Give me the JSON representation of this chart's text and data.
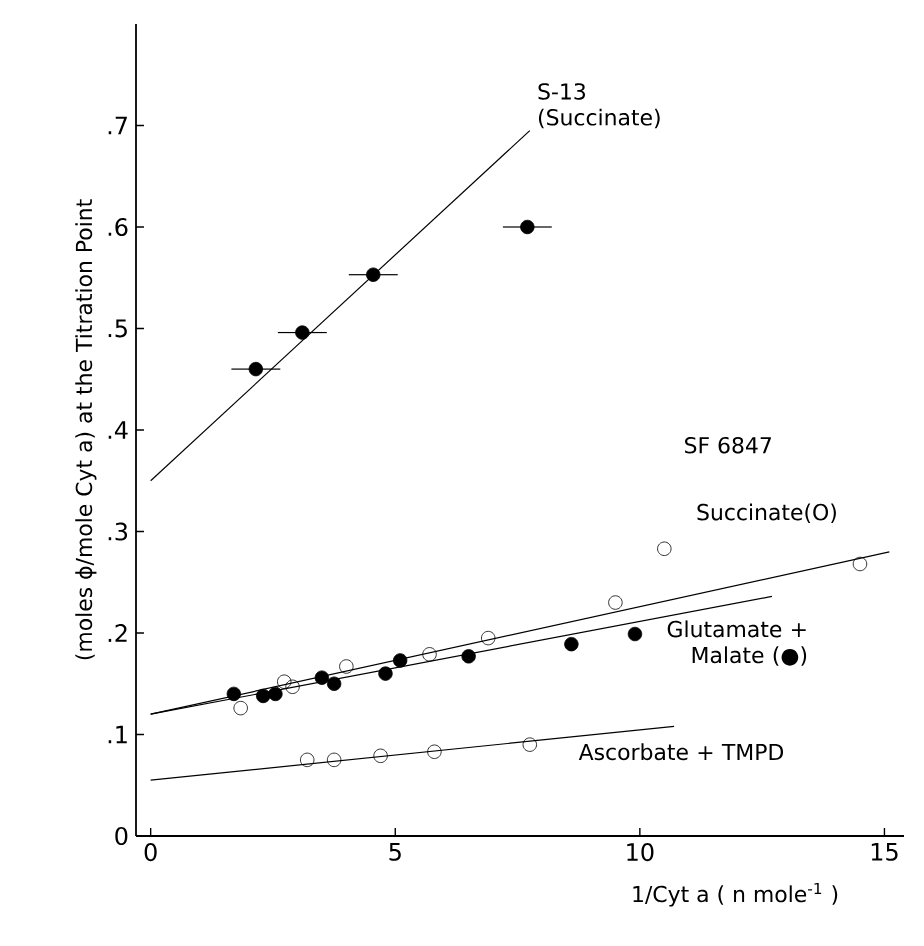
{
  "chart_data": {
    "type": "scatter",
    "ylabel": "(moles ϕ/mole Cyt a) at the Titration Point",
    "xlabel": "1/Cyt a ( n mole$^{-1}$ )",
    "xlim": [
      -0.3,
      15.4
    ],
    "ylim": [
      0,
      0.8
    ],
    "xticks": [
      0,
      5,
      10,
      15
    ],
    "yticks": [
      0,
      {
        "value": 0.1,
        "label": ".1"
      },
      {
        "value": 0.2,
        "label": ".2"
      },
      {
        "value": 0.3,
        "label": ".3"
      },
      {
        "value": 0.4,
        "label": ".4"
      },
      {
        "value": 0.5,
        "label": ".5"
      },
      {
        "value": 0.6,
        "label": ".6"
      },
      {
        "value": 0.7,
        "label": ".7"
      }
    ],
    "grid": false,
    "annotations": [
      "SF 6847"
    ],
    "series": [
      {
        "marker": "circle",
        "color": "#000000",
        "x": [
          2.15,
          3.1,
          4.55,
          7.7
        ],
        "values": [
          0.46,
          0.496,
          0.553,
          0.6
        ],
        "xerrors": [
          0.5,
          0.5,
          0.5,
          0.5
        ]
      },
      {
        "name": "S-13 (Succinate)",
        "type": "line",
        "color": "#000000",
        "line_style": "solid",
        "x": [
          0,
          7.75
        ],
        "values": [
          0.35,
          0.695
        ]
      },
      {
        "name": "Succinate(O)",
        "marker": "circle",
        "x": [
          1.84,
          2.73,
          2.9,
          4.0,
          5.7,
          6.9,
          9.5,
          10.5,
          14.5
        ],
        "values": [
          0.126,
          0.152,
          0.147,
          0.167,
          0.179,
          0.195,
          0.23,
          0.283,
          0.268
        ]
      },
      {
        "type": "line",
        "color": "#000000",
        "line_style": "solid",
        "x": [
          0,
          15.1
        ],
        "values": [
          0.12,
          0.28
        ]
      },
      {
        "name": "Glutamate + Malate (●)",
        "marker": "circle",
        "color": "#000000",
        "x": [
          1.7,
          2.3,
          2.55,
          3.5,
          3.75,
          4.8,
          5.1,
          6.5,
          8.6,
          9.9
        ],
        "values": [
          0.14,
          0.138,
          0.14,
          0.156,
          0.15,
          0.16,
          0.173,
          0.177,
          0.189,
          0.199
        ]
      },
      {
        "type": "line",
        "color": "#000000",
        "line_style": "solid",
        "x": [
          0,
          12.7
        ],
        "values": [
          0.12,
          0.236
        ]
      },
      {
        "name": "Ascorbate + TMPD",
        "marker": "circle",
        "x": [
          3.2,
          3.75,
          4.7,
          5.8,
          7.75
        ],
        "values": [
          0.075,
          0.075,
          0.079,
          0.083,
          0.09
        ]
      },
      {
        "type": "line",
        "color": "#000000",
        "line_style": "solid",
        "x": [
          0,
          10.7
        ],
        "values": [
          0.055,
          0.108
        ]
      }
    ]
  }
}
